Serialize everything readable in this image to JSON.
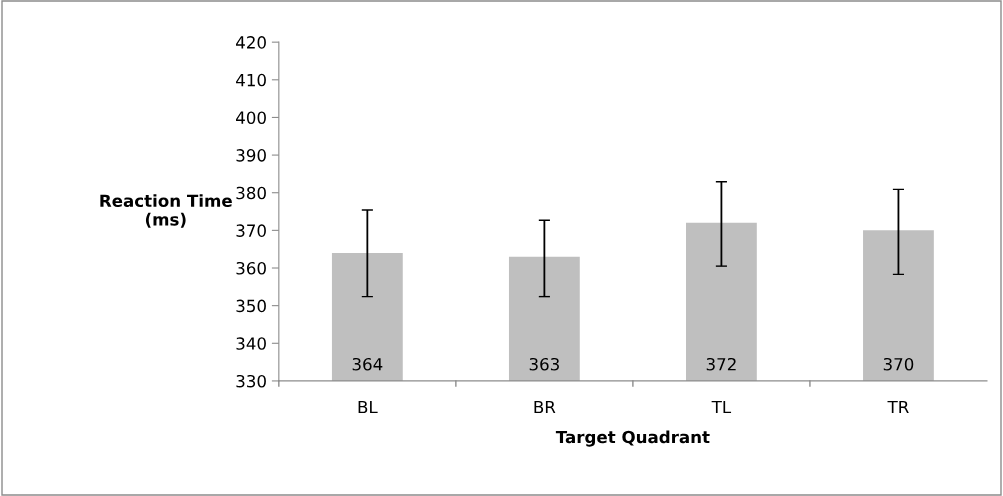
{
  "chart_data": {
    "type": "bar",
    "xlabel": "Target Quadrant",
    "ylabel": "Reaction Time\n(ms)",
    "categories": [
      "BL",
      "BR",
      "TL",
      "TR"
    ],
    "values": [
      364,
      363,
      372,
      370
    ],
    "errors": [
      [
        352.4,
        375.4
      ],
      [
        352.4,
        372.7
      ],
      [
        360.5,
        382.9
      ],
      [
        358.3,
        380.9
      ]
    ],
    "color": "#bfbfbf",
    "data_labels": true,
    "ylim": [
      330,
      420
    ],
    "yticks": [
      330,
      340,
      350,
      360,
      370,
      380,
      390,
      400,
      410,
      420
    ],
    "grid": false,
    "legend": false
  }
}
